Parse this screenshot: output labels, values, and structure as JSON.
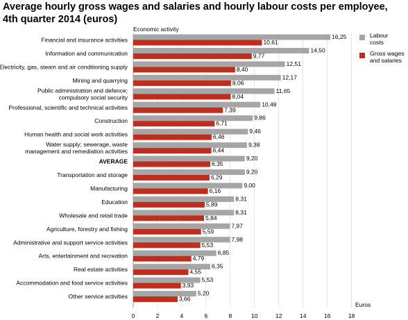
{
  "chart_data": {
    "type": "bar",
    "orientation": "horizontal",
    "title": "Average hourly gross wages and salaries and hourly labour costs per employee, 4th quarter 2014 (euros)",
    "category_axis_label": "Economic activity",
    "xlabel": "Euros",
    "xlim": [
      0,
      18
    ],
    "xticks": [
      0,
      2,
      4,
      6,
      8,
      10,
      12,
      14,
      16,
      18
    ],
    "grid": "vertical",
    "legend_position": "right",
    "categories": [
      [
        "Financial and insurance activities"
      ],
      [
        "Information and communication"
      ],
      [
        "Electricity, gas, steam and air conditioning supply"
      ],
      [
        "Mining and quarrying"
      ],
      [
        "Public administration and defence;",
        "compulsory social security"
      ],
      [
        "Professional, scientific and technical activities"
      ],
      [
        "Construction"
      ],
      [
        "Human health and social work activities"
      ],
      [
        "Water supply; sewerage, waste",
        "management and remediation activities"
      ],
      [
        "AVERAGE"
      ],
      [
        "Transportation and storage"
      ],
      [
        "Manufacturing"
      ],
      [
        "Education"
      ],
      [
        "Wholesale and retail trade"
      ],
      [
        "Agriculture, forestry and fishing"
      ],
      [
        "Administrative and support service activities"
      ],
      [
        "Arts, entertainment and recreation"
      ],
      [
        "Real estate activities"
      ],
      [
        "Accommodation and food service activities"
      ],
      [
        "Other service activities"
      ]
    ],
    "bold_category": "AVERAGE",
    "series": [
      {
        "name": [
          "Labour",
          "costs"
        ],
        "color": "#a6a6a6",
        "values": [
          16.25,
          14.5,
          12.51,
          12.17,
          11.65,
          10.48,
          9.86,
          9.46,
          9.38,
          9.2,
          9.2,
          9.0,
          8.31,
          8.31,
          7.97,
          7.98,
          6.85,
          6.35,
          5.53,
          5.2
        ],
        "labels": [
          "16,25",
          "14,50",
          "12,51",
          "12,17",
          "11,65",
          "10,48",
          "9,86",
          "9,46",
          "9,38",
          "9,20",
          "9,20",
          "9,00",
          "8,31",
          "8,31",
          "7,97",
          "7,98",
          "6,85",
          "6,35",
          "5,53",
          "5,20"
        ]
      },
      {
        "name": [
          "Gross wages",
          "and salaries"
        ],
        "color": "#be2d1e",
        "values": [
          10.61,
          9.77,
          8.4,
          8.06,
          8.04,
          7.39,
          6.71,
          6.46,
          6.44,
          6.35,
          6.29,
          6.16,
          5.89,
          5.84,
          5.59,
          5.53,
          4.79,
          4.55,
          3.93,
          3.66
        ],
        "labels": [
          "10,61",
          "9,77",
          "8,40",
          "8,06",
          "8,04",
          "7,39",
          "6,71",
          "6,46",
          "6,44",
          "6,35",
          "6,29",
          "6,16",
          "5,89",
          "5,84",
          "5,59",
          "5,53",
          "4,79",
          "4,55",
          "3,93",
          "3,66"
        ]
      }
    ]
  }
}
